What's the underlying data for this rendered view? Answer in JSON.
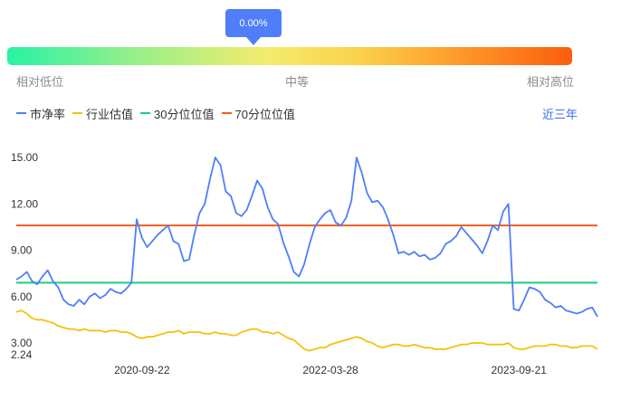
{
  "gauge": {
    "pointer_label": "0.00%",
    "percentile": 0.0,
    "low_label": "相对低位",
    "mid_label": "中等",
    "high_label": "相对高位",
    "colors": [
      "#27f3a4",
      "#f4ec6c",
      "#fb5e0b"
    ]
  },
  "range_label": "近三年",
  "chart_data": {
    "type": "line",
    "title": "",
    "xlabel": "",
    "ylabel": "",
    "grid": false,
    "legend_placement": "top-left",
    "ylim": [
      2.24,
      16.0
    ],
    "y_ticks": [
      "2.24",
      "3.00",
      "6.00",
      "9.00",
      "12.00",
      "15.00"
    ],
    "x_ticks": [
      "2020-09-22",
      "2022-03-28",
      "2023-09-21"
    ],
    "x_tick_index": [
      24,
      60,
      96
    ],
    "series": [
      {
        "name": "市净率",
        "color": "#4f7ef8",
        "values": [
          7.1,
          7.3,
          7.6,
          7.0,
          6.8,
          7.3,
          7.7,
          7.0,
          6.6,
          5.8,
          5.5,
          5.4,
          5.8,
          5.5,
          6.0,
          6.2,
          5.9,
          6.1,
          6.5,
          6.3,
          6.2,
          6.5,
          6.9,
          11.0,
          9.8,
          9.2,
          9.6,
          10.0,
          10.3,
          10.6,
          9.6,
          9.4,
          8.3,
          8.4,
          10.0,
          11.4,
          12.0,
          13.6,
          15.0,
          14.5,
          12.8,
          12.5,
          11.4,
          11.2,
          11.6,
          12.5,
          13.5,
          13.0,
          11.8,
          11.0,
          10.7,
          9.5,
          8.6,
          7.6,
          7.3,
          8.1,
          9.4,
          10.5,
          11.0,
          11.4,
          11.6,
          10.8,
          10.6,
          11.1,
          12.2,
          15.0,
          14.0,
          12.7,
          12.1,
          12.2,
          11.8,
          11.0,
          10.0,
          8.8,
          8.9,
          8.7,
          8.9,
          8.6,
          8.7,
          8.4,
          8.5,
          8.8,
          9.4,
          9.6,
          9.9,
          10.5,
          10.1,
          9.7,
          9.3,
          8.8,
          9.6,
          10.6,
          10.3,
          11.5,
          12.0,
          5.2,
          5.1,
          5.8,
          6.6,
          6.5,
          6.3,
          5.8,
          5.6,
          5.3,
          5.4,
          5.1,
          5.0,
          4.9,
          5.0,
          5.2,
          5.3,
          4.7
        ]
      },
      {
        "name": "行业估值",
        "color": "#f4c20d",
        "values": [
          5.0,
          5.1,
          4.9,
          4.6,
          4.5,
          4.5,
          4.4,
          4.3,
          4.1,
          4.0,
          3.9,
          3.9,
          3.8,
          3.9,
          3.8,
          3.8,
          3.8,
          3.7,
          3.8,
          3.8,
          3.7,
          3.7,
          3.6,
          3.4,
          3.3,
          3.4,
          3.4,
          3.5,
          3.6,
          3.7,
          3.7,
          3.8,
          3.6,
          3.7,
          3.7,
          3.7,
          3.6,
          3.6,
          3.7,
          3.6,
          3.6,
          3.5,
          3.5,
          3.7,
          3.8,
          3.9,
          3.9,
          3.7,
          3.7,
          3.6,
          3.7,
          3.5,
          3.3,
          3.2,
          2.9,
          2.6,
          2.5,
          2.6,
          2.7,
          2.7,
          2.9,
          3.0,
          3.1,
          3.2,
          3.3,
          3.4,
          3.3,
          3.1,
          3.0,
          2.8,
          2.7,
          2.8,
          2.9,
          2.9,
          2.8,
          2.8,
          2.9,
          2.8,
          2.7,
          2.7,
          2.6,
          2.6,
          2.6,
          2.7,
          2.8,
          2.9,
          2.9,
          3.0,
          3.0,
          3.0,
          2.9,
          2.9,
          2.9,
          2.9,
          3.0,
          2.7,
          2.6,
          2.6,
          2.7,
          2.8,
          2.8,
          2.8,
          2.9,
          2.9,
          2.8,
          2.8,
          2.7,
          2.7,
          2.8,
          2.8,
          2.8,
          2.6
        ]
      },
      {
        "name": "30分位位值",
        "color": "#18d07f",
        "constant": 6.9
      },
      {
        "name": "70分位位值",
        "color": "#f45a1a",
        "constant": 10.6
      }
    ]
  }
}
